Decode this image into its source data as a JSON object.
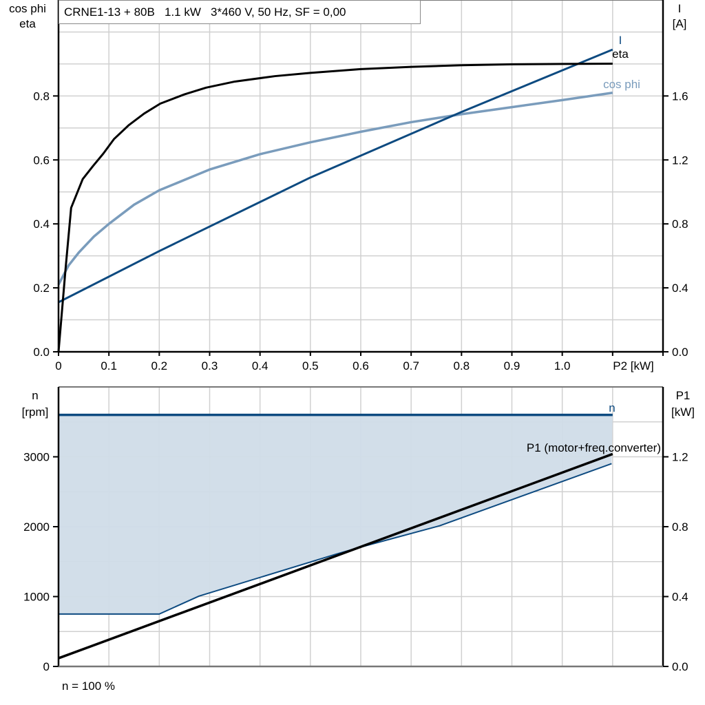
{
  "chart_data": [
    {
      "type": "line",
      "title": "CRNE1-13 + 80B   1.1 kW   3*460 V, 50 Hz, SF = 0,00",
      "xlabel": "P2 [kW]",
      "ylabel_left": [
        "cos phi",
        "eta"
      ],
      "ylabel_right": [
        "I",
        "[A]"
      ],
      "xlim": [
        0,
        1.2
      ],
      "ylim_left": [
        0,
        1.1
      ],
      "ylim_right": [
        0,
        2.2
      ],
      "x_ticks": [
        "0",
        "0.1",
        "0.2",
        "0.3",
        "0.4",
        "0.5",
        "0.6",
        "0.7",
        "0.8",
        "0.9",
        "1.0"
      ],
      "y_ticks_left": [
        "0.0",
        "0.2",
        "0.4",
        "0.6",
        "0.8"
      ],
      "y_ticks_right": [
        "0.0",
        "0.4",
        "0.8",
        "1.2",
        "1.6"
      ],
      "grid": true,
      "series": [
        {
          "name": "eta",
          "axis": "left",
          "color": "#000000",
          "x": [
            0,
            0.014,
            0.025,
            0.048,
            0.068,
            0.089,
            0.11,
            0.139,
            0.17,
            0.202,
            0.25,
            0.293,
            0.35,
            0.43,
            0.5,
            0.6,
            0.7,
            0.8,
            0.9,
            1.0,
            1.1
          ],
          "y": [
            0,
            0.26,
            0.45,
            0.54,
            0.58,
            0.62,
            0.665,
            0.708,
            0.745,
            0.776,
            0.805,
            0.826,
            0.845,
            0.862,
            0.872,
            0.884,
            0.891,
            0.896,
            0.899,
            0.9,
            0.901
          ]
        },
        {
          "name": "cos phi",
          "axis": "left",
          "color": "#7a9cbc",
          "x": [
            0,
            0.02,
            0.04,
            0.07,
            0.1,
            0.15,
            0.2,
            0.3,
            0.4,
            0.5,
            0.6,
            0.7,
            0.8,
            0.9,
            1.0,
            1.1
          ],
          "y": [
            0.21,
            0.27,
            0.31,
            0.36,
            0.4,
            0.46,
            0.505,
            0.57,
            0.618,
            0.655,
            0.688,
            0.718,
            0.743,
            0.765,
            0.787,
            0.81
          ]
        },
        {
          "name": "I",
          "axis": "right",
          "color": "#0d4a80",
          "x": [
            0,
            0.2,
            0.5,
            0.8,
            1.1
          ],
          "y": [
            0.31,
            0.63,
            1.09,
            1.5,
            1.89
          ]
        }
      ]
    },
    {
      "type": "area",
      "footer": "n = 100 %",
      "ylabel_left": [
        "n",
        "[rpm]"
      ],
      "ylabel_right": [
        "P1",
        "[kW]"
      ],
      "xlim": [
        0,
        1.2
      ],
      "ylim_left": [
        0,
        4000
      ],
      "ylim_right": [
        0,
        1.6
      ],
      "y_ticks_left": [
        "0",
        "1000",
        "2000",
        "3000"
      ],
      "y_ticks_right": [
        "0.0",
        "0.4",
        "0.8",
        "1.2"
      ],
      "grid": true,
      "fill_color": "#d0dce8",
      "series": [
        {
          "name": "n",
          "axis": "left",
          "color": "#0d4a80",
          "x": [
            0,
            1.1
          ],
          "y": [
            3600,
            3600
          ]
        },
        {
          "axis": "left",
          "color": "#0d4a80",
          "role": "lower speed limit",
          "x": [
            0,
            0.2,
            0.279,
            0.552,
            0.6,
            0.757,
            1.098
          ],
          "y": [
            750,
            750,
            1007,
            1609,
            1708,
            2014,
            2902
          ]
        },
        {
          "name": "P1 (motor+freq.converter)",
          "axis": "right",
          "color": "#000000",
          "x": [
            0,
            1.1
          ],
          "y": [
            0.047,
            1.216
          ]
        }
      ]
    }
  ]
}
